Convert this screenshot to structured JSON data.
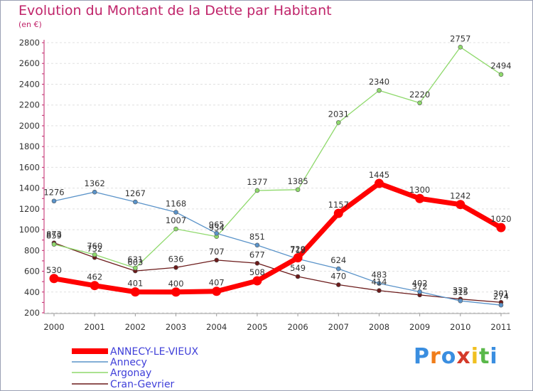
{
  "chart_data": {
    "type": "line",
    "title": "Evolution du Montant de la Dette par Habitant",
    "subtitle": "(en €)",
    "x": [
      "2000",
      "2001",
      "2002",
      "2003",
      "2004",
      "2005",
      "2006",
      "2007",
      "2008",
      "2009",
      "2010",
      "2011"
    ],
    "ylim": [
      200,
      2800
    ],
    "yticks": [
      200,
      400,
      600,
      800,
      1000,
      1200,
      1400,
      1600,
      1800,
      2000,
      2200,
      2400,
      2600,
      2800
    ],
    "grid": "horizontal dashed",
    "legend_position": "bottom-left",
    "series": [
      {
        "name": "ANNECY-LE-VIEUX",
        "color": "#ff0000",
        "values": [
          530,
          462,
          401,
          400,
          407,
          508,
          729,
          1157,
          1445,
          1300,
          1242,
          1020
        ]
      },
      {
        "name": "Annecy",
        "color": "#5a93c9",
        "values": [
          1276,
          1362,
          1267,
          1168,
          965,
          851,
          719,
          624,
          483,
          402,
          315,
          274
        ]
      },
      {
        "name": "Argonay",
        "color": "#8fd96c",
        "values": [
          859,
          760,
          631,
          1007,
          934,
          1377,
          1385,
          2031,
          2340,
          2220,
          2757,
          2494
        ]
      },
      {
        "name": "Cran-Gevrier",
        "color": "#6b1a1a",
        "values": [
          873,
          732,
          603,
          636,
          707,
          677,
          549,
          470,
          414,
          372,
          332,
          301
        ]
      }
    ]
  },
  "logo": {
    "text": "Proxiti",
    "colors": [
      "#3a8ee0",
      "#f07d1a",
      "#3a8ee0",
      "#d43a2a",
      "#f0c020",
      "#5ab84a",
      "#3a8ee0"
    ]
  }
}
